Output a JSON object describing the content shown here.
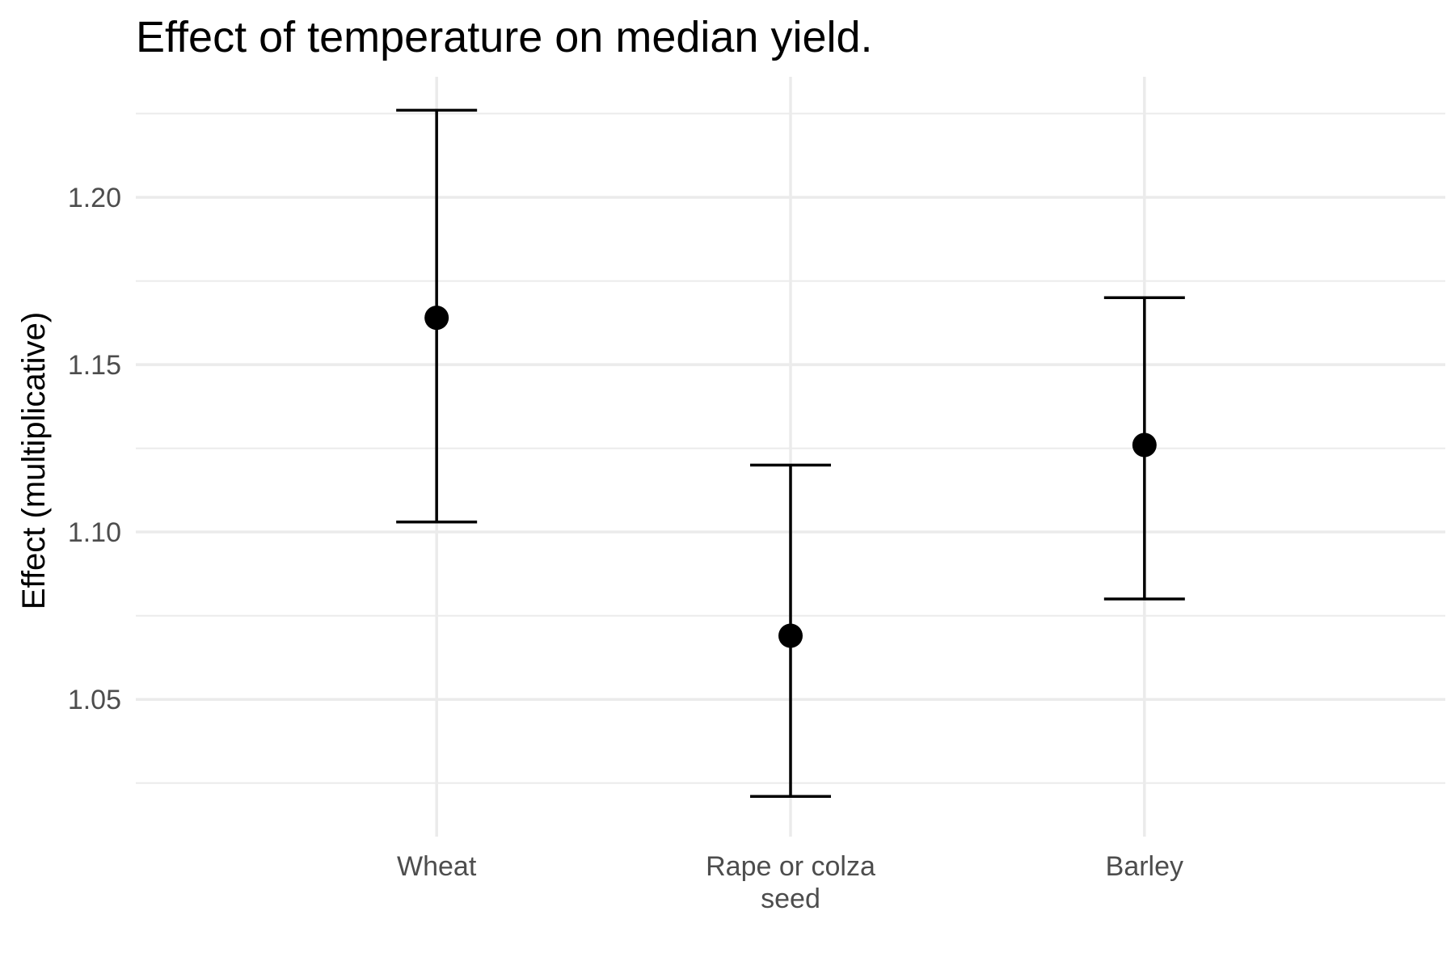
{
  "chart_data": {
    "type": "errorbar",
    "title": "Effect of temperature on median yield.",
    "xlabel": "",
    "ylabel": "Effect (multiplicative)",
    "categories": [
      "Wheat",
      "Rape or colza seed",
      "Barley"
    ],
    "category_label_lines": [
      [
        "Wheat"
      ],
      [
        "Rape or colza",
        "seed"
      ],
      [
        "Barley"
      ]
    ],
    "estimates": [
      1.164,
      1.069,
      1.126
    ],
    "lower": [
      1.103,
      1.021,
      1.08
    ],
    "upper": [
      1.226,
      1.12,
      1.17
    ],
    "ylim": [
      1.009,
      1.236
    ],
    "yticks": [
      1.05,
      1.1,
      1.15,
      1.2
    ],
    "ytick_labels": [
      "1.05",
      "1.10",
      "1.15",
      "1.20"
    ],
    "yminor": [
      1.025,
      1.075,
      1.125,
      1.175,
      1.225
    ],
    "grid": true,
    "legend": "none",
    "colors": {
      "marks": "#000000",
      "grid": "#ebebeb",
      "tick_text": "#4d4d4d",
      "background": "#ffffff"
    }
  }
}
